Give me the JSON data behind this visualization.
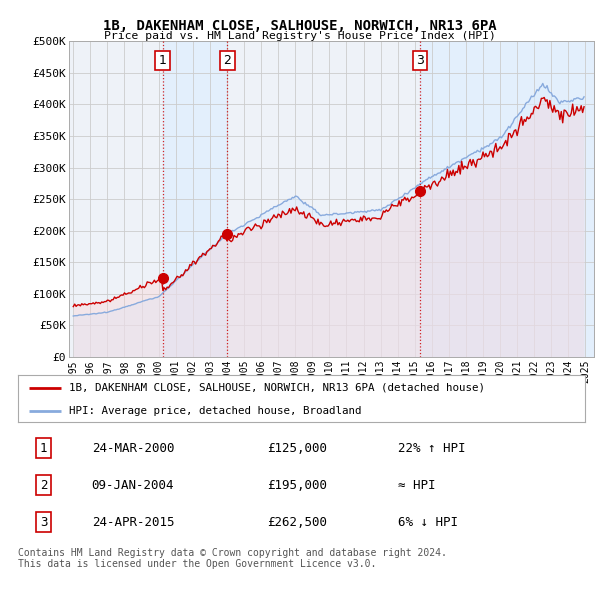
{
  "title": "1B, DAKENHAM CLOSE, SALHOUSE, NORWICH, NR13 6PA",
  "subtitle": "Price paid vs. HM Land Registry's House Price Index (HPI)",
  "ylim": [
    0,
    500000
  ],
  "yticks": [
    0,
    50000,
    100000,
    150000,
    200000,
    250000,
    300000,
    350000,
    400000,
    450000,
    500000
  ],
  "ytick_labels": [
    "£0",
    "£50K",
    "£100K",
    "£150K",
    "£200K",
    "£250K",
    "£300K",
    "£350K",
    "£400K",
    "£450K",
    "£500K"
  ],
  "sale_color": "#cc0000",
  "hpi_color": "#88aadd",
  "hpi_fill_color": "#ddeeff",
  "sale_fill_color": "#ddbbbb",
  "grid_color": "#cccccc",
  "bg_color": "#ffffff",
  "plot_bg_color": "#eef2f8",
  "shade_color": "#ddeeff",
  "sale_years": [
    2000.23,
    2004.03,
    2015.32
  ],
  "sale_prices": [
    125000,
    195000,
    262500
  ],
  "sale_labels": [
    "1",
    "2",
    "3"
  ],
  "legend_entries": [
    "1B, DAKENHAM CLOSE, SALHOUSE, NORWICH, NR13 6PA (detached house)",
    "HPI: Average price, detached house, Broadland"
  ],
  "table_rows": [
    {
      "num": "1",
      "date": "24-MAR-2000",
      "price": "£125,000",
      "rel": "22% ↑ HPI"
    },
    {
      "num": "2",
      "date": "09-JAN-2004",
      "price": "£195,000",
      "rel": "≈ HPI"
    },
    {
      "num": "3",
      "date": "24-APR-2015",
      "price": "£262,500",
      "rel": "6% ↓ HPI"
    }
  ],
  "footer": "Contains HM Land Registry data © Crown copyright and database right 2024.\nThis data is licensed under the Open Government Licence v3.0.",
  "xmin": 1994.75,
  "xmax": 2025.5,
  "xticks": [
    1995,
    1996,
    1997,
    1998,
    1999,
    2000,
    2001,
    2002,
    2003,
    2004,
    2005,
    2006,
    2007,
    2008,
    2009,
    2010,
    2011,
    2012,
    2013,
    2014,
    2015,
    2016,
    2017,
    2018,
    2019,
    2020,
    2021,
    2022,
    2023,
    2024,
    2025
  ]
}
